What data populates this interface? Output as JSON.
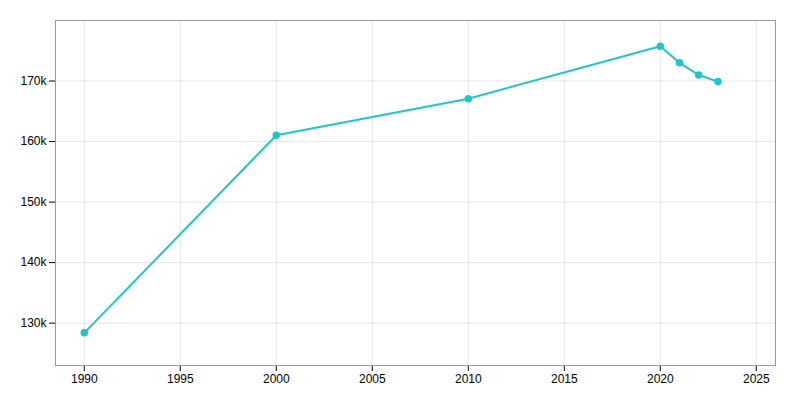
{
  "chart_data": {
    "type": "line",
    "x": [
      1990,
      2000,
      2010,
      2020,
      2021,
      2022,
      2023
    ],
    "values": [
      128398,
      161029,
      167086,
      175742,
      173000,
      171000,
      169902
    ],
    "color": "#20C5C8",
    "marker": "circle",
    "xlim": [
      1988.5,
      2026
    ],
    "ylim": [
      123000,
      180000
    ],
    "xticks": [
      1990,
      1995,
      2000,
      2005,
      2010,
      2015,
      2020,
      2025
    ],
    "yticks": [
      {
        "value": 130000,
        "label": "130k"
      },
      {
        "value": 140000,
        "label": "140k"
      },
      {
        "value": 150000,
        "label": "150k"
      },
      {
        "value": 160000,
        "label": "160k"
      },
      {
        "value": 170000,
        "label": "170k"
      }
    ],
    "grid": true
  }
}
